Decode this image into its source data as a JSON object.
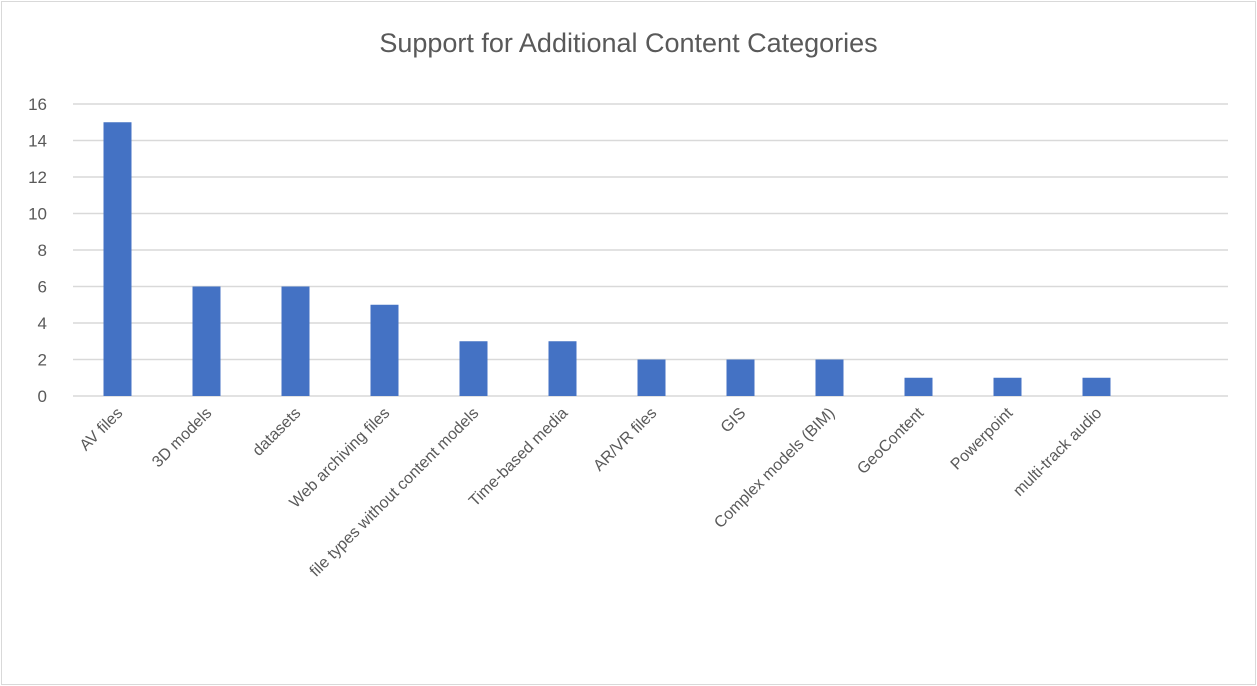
{
  "chart_data": {
    "type": "bar",
    "title": "Support for Additional Content Categories",
    "xlabel": "",
    "ylabel": "",
    "categories": [
      "AV files",
      "3D models",
      "datasets",
      "Web archiving files",
      "file types without content models",
      "Time-based media",
      "AR/VR files",
      "GIS",
      "Complex models (BIM)",
      "GeoContent",
      "Powerpoint",
      "multi-track audio"
    ],
    "values": [
      15,
      6,
      6,
      5,
      3,
      3,
      2,
      2,
      2,
      1,
      1,
      1
    ],
    "ylim": [
      0,
      16
    ],
    "yticks": [
      0,
      2,
      4,
      6,
      8,
      10,
      12,
      14,
      16
    ],
    "grid": true,
    "legend": "none",
    "bar_color": "#4472c4",
    "gridline_color": "#d9d9d9"
  }
}
